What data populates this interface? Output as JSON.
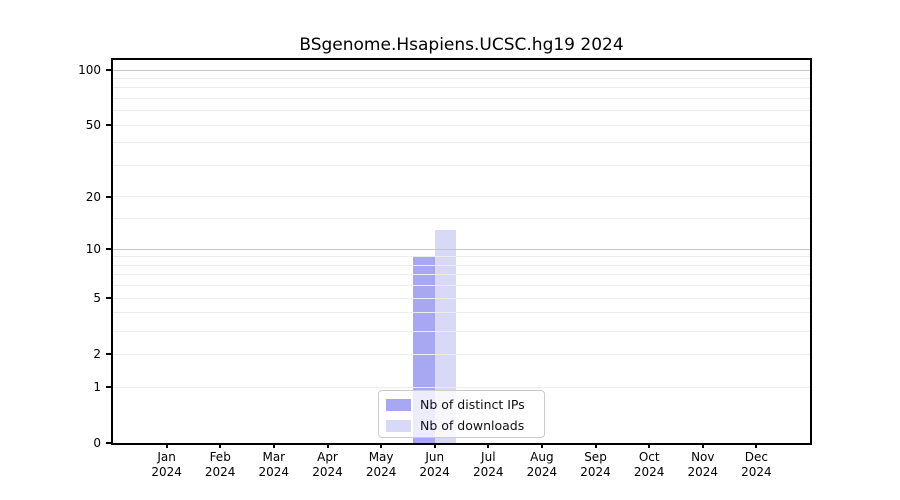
{
  "title": "BSgenome.Hsapiens.UCSC.hg19 2024",
  "chart_data": {
    "type": "bar",
    "title": "BSgenome.Hsapiens.UCSC.hg19 2024",
    "categories": [
      "Jan",
      "Feb",
      "Mar",
      "Apr",
      "May",
      "Jun",
      "Jul",
      "Aug",
      "Sep",
      "Oct",
      "Nov",
      "Dec"
    ],
    "category_year": "2024",
    "series": [
      {
        "name": "Nb of distinct IPs",
        "color": "#a8a8f2",
        "values": [
          0,
          0,
          0,
          0,
          0,
          9,
          0,
          0,
          0,
          0,
          0,
          0
        ]
      },
      {
        "name": "Nb of downloads",
        "color": "#d8d8f7",
        "values": [
          0,
          0,
          0,
          0,
          0,
          13,
          0,
          0,
          0,
          0,
          0,
          0
        ]
      }
    ],
    "xlabel": "",
    "ylabel": "",
    "yscale": "log1p",
    "ylim": [
      0,
      113
    ],
    "yticks": [
      0,
      1,
      2,
      5,
      10,
      20,
      50,
      100
    ],
    "gridlines_major": [
      10,
      100
    ],
    "gridlines_minor": [
      1,
      2,
      3,
      4,
      5,
      6,
      7,
      8,
      9,
      15,
      20,
      30,
      40,
      50,
      60,
      70,
      80,
      90
    ],
    "grid": true,
    "legend_position": "lower center",
    "colors": {
      "axis": "#000000",
      "grid_major": "#c6c6c6",
      "grid_minor": "#ececec",
      "legend_border": "#cccccc",
      "background": "#ffffff"
    }
  }
}
